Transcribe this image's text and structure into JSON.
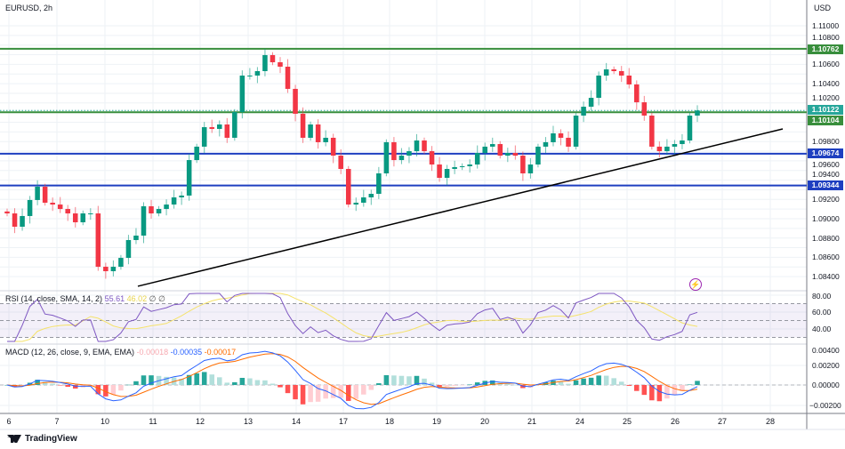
{
  "header": {
    "symbol": "EURUSD, 2h",
    "currency": "USD"
  },
  "colors": {
    "up": "#089981",
    "down": "#f23645",
    "resistance": "#388e3c",
    "support": "#1e3fc0",
    "trendline": "#000000",
    "current": "#26a69a",
    "rsi": "#7e57c2",
    "rsi_ma": "#f5e26a",
    "macd": "#2962ff",
    "signal": "#ff6d00"
  },
  "price_axis": [
    "1.11000",
    "1.10800",
    "1.10600",
    "1.10400",
    "1.10200",
    "1.09800",
    "1.09600",
    "1.09400",
    "1.09200",
    "1.09000",
    "1.08800",
    "1.08600",
    "1.08400"
  ],
  "levels": [
    {
      "price": 1.10762,
      "label": "1.10762",
      "kind": "resistance"
    },
    {
      "price": 1.10104,
      "label": "1.10104",
      "kind": "resistance"
    },
    {
      "price": 1.09674,
      "label": "1.09674",
      "kind": "support"
    },
    {
      "price": 1.09344,
      "label": "1.09344",
      "kind": "support"
    }
  ],
  "current_price": {
    "price": 1.10122,
    "label": "1.10122"
  },
  "trendline": {
    "start_price": 1.083,
    "end_price": 1.09931
  },
  "closes": [
    1.09055,
    1.08917,
    1.09028,
    1.09194,
    1.09332,
    1.09166,
    1.09147,
    1.09101,
    1.09055,
    1.08963,
    1.09055,
    1.09055,
    1.08502,
    1.08456,
    1.08502,
    1.08594,
    1.08779,
    1.08825,
    1.09129,
    1.09055,
    1.09101,
    1.09147,
    1.09221,
    1.0924,
    1.09608,
    1.09747,
    1.09949,
    1.09931,
    1.09977,
    1.09839,
    1.10106,
    1.10484,
    1.10484,
    1.1053,
    1.10696,
    1.10622,
    1.10576,
    1.10346,
    1.10088,
    1.09839,
    1.09977,
    1.09793,
    1.09839,
    1.09654,
    1.09516,
    1.09147,
    1.09166,
    1.09221,
    1.09258,
    1.0947,
    1.09793,
    1.09608,
    1.09654,
    1.097,
    1.09811,
    1.097,
    1.09562,
    1.09424,
    1.09516,
    1.09535,
    1.09544,
    1.09562,
    1.09682,
    1.09747,
    1.09774,
    1.09654,
    1.09682,
    1.09654,
    1.0947,
    1.09562,
    1.09747,
    1.09793,
    1.09885,
    1.09839,
    1.09747,
    1.10069,
    1.10161,
    1.10253,
    1.10484,
    1.10548,
    1.1053,
    1.10484,
    1.10392,
    1.10207,
    1.10069,
    1.09747,
    1.097,
    1.09747,
    1.09774,
    1.09811,
    1.10069,
    1.10122
  ],
  "rsi": {
    "legend": "RSI (14, close, SMA, 14, 2)",
    "value": "55.61",
    "ma_value": "46.02",
    "extra1": "∅",
    "extra2": "∅",
    "axis": [
      "80.00",
      "60.00",
      "40.00"
    ]
  },
  "macd": {
    "legend": "MACD (12, 26, close, 9, EMA, EMA)",
    "hist": "-0.00018",
    "macd": "-0.00035",
    "signal": "-0.00017",
    "axis": [
      "0.00400",
      "0.00200",
      "0.00000",
      "−0.00200"
    ]
  },
  "dates": [
    "6",
    "7",
    "10",
    "11",
    "12",
    "13",
    "14",
    "17",
    "18",
    "19",
    "20",
    "21",
    "24",
    "25",
    "26",
    "27",
    "28"
  ],
  "footer": {
    "brand": "TradingView"
  }
}
